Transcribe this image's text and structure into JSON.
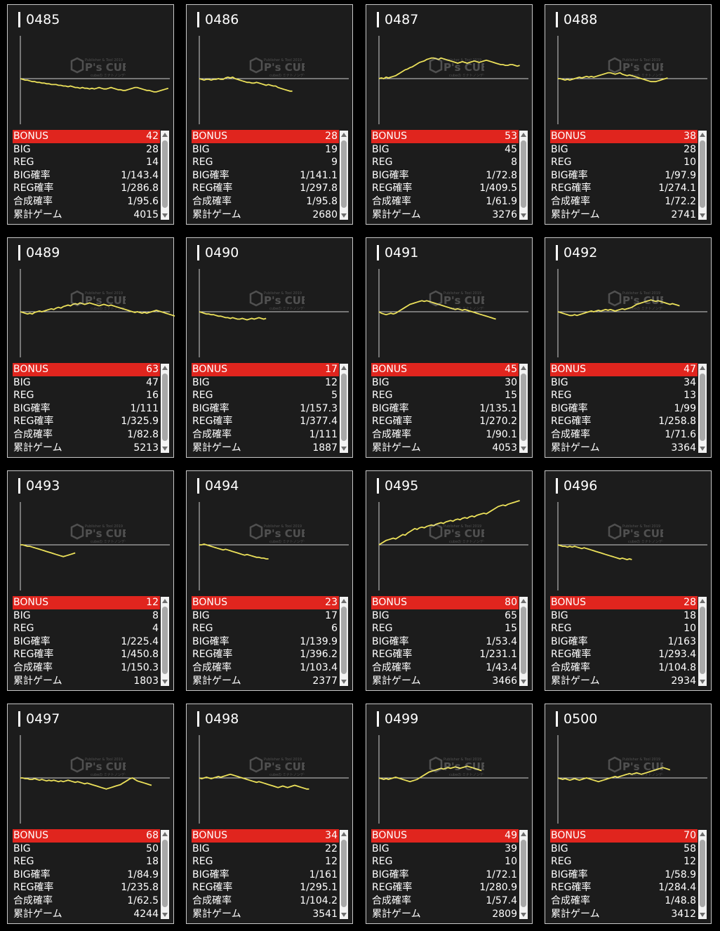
{
  "watermark": {
    "top": "Publisher & Tool 2019",
    "brand": "P's CUBE",
    "bottom": "cubeの ミナトノンデータ"
  },
  "colors": {
    "background": "#000000",
    "card": "#1c1c1c",
    "bonus_bar": "#e0251e",
    "graph_line": "#ece15a",
    "axis": "#d0d0d0"
  },
  "machines": [
    {
      "id": "0485",
      "bonus": "42",
      "big": "28",
      "reg": "14",
      "big_rate": "1/143.4",
      "reg_rate": "1/286.8",
      "total_rate": "1/95.6",
      "games": "4015",
      "trend": [
        0,
        -1,
        -2,
        -2,
        -3,
        -4,
        -4,
        -5,
        -5,
        -6,
        -6,
        -7,
        -7,
        -8,
        -8,
        -8,
        -9,
        -9,
        -10,
        -10,
        -11,
        -10,
        -11,
        -12,
        -12,
        -13,
        -12,
        -13,
        -13,
        -14,
        -13,
        -14,
        -13,
        -12,
        -13,
        -14,
        -14,
        -13,
        -12,
        -13,
        -14,
        -15,
        -15,
        -16,
        -16,
        -15,
        -14,
        -13,
        -12,
        -12,
        -13,
        -14,
        -15,
        -16,
        -16,
        -17,
        -18,
        -18,
        -17,
        -16,
        -15,
        -14,
        -13
      ]
    },
    {
      "id": "0486",
      "bonus": "28",
      "big": "19",
      "reg": "9",
      "big_rate": "1/141.1",
      "reg_rate": "1/297.8",
      "total_rate": "1/95.8",
      "games": "2680",
      "trend": [
        0,
        -1,
        -2,
        -1,
        -1,
        -2,
        -1,
        -1,
        0,
        -1,
        -1,
        1,
        2,
        1,
        2,
        0,
        -1,
        -2,
        -3,
        -4,
        -5,
        -5,
        -6,
        -6,
        -5,
        -6,
        -7,
        -8,
        -9,
        -8,
        -9,
        -10,
        -10,
        -12,
        -13,
        -14,
        -15,
        -16,
        -17,
        -17
      ]
    },
    {
      "id": "0487",
      "bonus": "53",
      "big": "45",
      "reg": "8",
      "big_rate": "1/72.8",
      "reg_rate": "1/409.5",
      "total_rate": "1/61.9",
      "games": "3276",
      "trend": [
        0,
        1,
        0,
        2,
        1,
        2,
        3,
        4,
        6,
        8,
        10,
        12,
        13,
        15,
        16,
        18,
        20,
        22,
        23,
        24,
        26,
        27,
        28,
        28,
        27,
        26,
        28,
        27,
        26,
        25,
        24,
        23,
        22,
        21,
        22,
        23,
        22,
        21,
        22,
        23,
        24,
        23,
        22,
        23,
        24,
        25,
        24,
        23,
        22,
        21,
        20,
        19,
        19,
        18,
        18,
        19,
        19,
        18,
        17,
        18
      ]
    },
    {
      "id": "0488",
      "bonus": "38",
      "big": "28",
      "reg": "10",
      "big_rate": "1/97.9",
      "reg_rate": "1/274.1",
      "total_rate": "1/72.2",
      "games": "2741",
      "trend": [
        0,
        0,
        -1,
        -2,
        -1,
        -2,
        -1,
        0,
        1,
        2,
        1,
        2,
        3,
        2,
        3,
        2,
        3,
        4,
        5,
        6,
        7,
        8,
        8,
        7,
        6,
        7,
        8,
        6,
        5,
        4,
        5,
        4,
        3,
        2,
        1,
        0,
        -1,
        -2,
        -3,
        -4,
        -4,
        -4,
        -3,
        -2,
        -1,
        0,
        1
      ]
    },
    {
      "id": "0489",
      "bonus": "63",
      "big": "47",
      "reg": "16",
      "big_rate": "1/111",
      "reg_rate": "1/325.9",
      "total_rate": "1/82.8",
      "games": "5213",
      "trend": [
        0,
        -1,
        -2,
        -3,
        -2,
        -3,
        -1,
        0,
        1,
        0,
        1,
        2,
        3,
        4,
        3,
        5,
        6,
        5,
        7,
        8,
        9,
        8,
        10,
        11,
        10,
        12,
        11,
        10,
        11,
        12,
        11,
        10,
        9,
        8,
        9,
        10,
        9,
        8,
        9,
        8,
        7,
        6,
        5,
        4,
        3,
        2,
        1,
        0,
        -1,
        0,
        -1,
        -2,
        -1,
        -2,
        -1,
        0,
        1,
        2,
        1,
        0,
        -1,
        -2,
        -3,
        -4,
        -5,
        -6,
        -7,
        -8,
        -9,
        -9,
        -10,
        -10
      ]
    },
    {
      "id": "0490",
      "bonus": "17",
      "big": "12",
      "reg": "5",
      "big_rate": "1/157.3",
      "reg_rate": "1/377.4",
      "total_rate": "1/111",
      "games": "1887",
      "trend": [
        0,
        -1,
        -2,
        -3,
        -3,
        -4,
        -4,
        -5,
        -6,
        -6,
        -7,
        -8,
        -8,
        -9,
        -8,
        -9,
        -10,
        -10,
        -9,
        -10,
        -11,
        -10,
        -9,
        -10,
        -9,
        -8,
        -9,
        -10,
        -9
      ]
    },
    {
      "id": "0491",
      "bonus": "45",
      "big": "30",
      "reg": "15",
      "big_rate": "1/135.1",
      "reg_rate": "1/270.2",
      "total_rate": "1/90.1",
      "games": "4053",
      "trend": [
        0,
        -2,
        -3,
        -4,
        -3,
        -2,
        -3,
        -2,
        0,
        2,
        4,
        6,
        8,
        10,
        11,
        12,
        13,
        14,
        15,
        14,
        15,
        14,
        13,
        12,
        11,
        10,
        9,
        8,
        7,
        6,
        5,
        4,
        3,
        4,
        3,
        2,
        3,
        2,
        1,
        0,
        -1,
        -2,
        -3,
        -4,
        -5,
        -6,
        -7,
        -8,
        -9,
        -10
      ]
    },
    {
      "id": "0492",
      "bonus": "47",
      "big": "34",
      "reg": "13",
      "big_rate": "1/99",
      "reg_rate": "1/258.8",
      "total_rate": "1/71.6",
      "games": "3364",
      "trend": [
        0,
        -1,
        -2,
        -3,
        -4,
        -5,
        -5,
        -4,
        -5,
        -4,
        -3,
        -2,
        -1,
        0,
        1,
        0,
        1,
        2,
        1,
        2,
        3,
        2,
        3,
        2,
        1,
        2,
        3,
        4,
        3,
        4,
        5,
        6,
        8,
        10,
        11,
        12,
        13,
        14,
        15,
        16,
        15,
        14,
        15,
        14,
        13,
        12,
        11,
        10,
        11,
        10,
        9,
        8
      ]
    },
    {
      "id": "0493",
      "bonus": "12",
      "big": "8",
      "reg": "4",
      "big_rate": "1/225.4",
      "reg_rate": "1/450.8",
      "total_rate": "1/150.3",
      "games": "1803",
      "trend": [
        0,
        0,
        -1,
        -2,
        -2,
        -3,
        -4,
        -5,
        -6,
        -7,
        -8,
        -9,
        -10,
        -11,
        -12,
        -13,
        -14,
        -15,
        -16,
        -15,
        -14,
        -13,
        -12,
        -11
      ]
    },
    {
      "id": "0494",
      "bonus": "23",
      "big": "17",
      "reg": "6",
      "big_rate": "1/139.9",
      "reg_rate": "1/396.2",
      "total_rate": "1/103.4",
      "games": "2377",
      "trend": [
        0,
        0,
        1,
        0,
        -1,
        -2,
        -3,
        -4,
        -5,
        -6,
        -7,
        -6,
        -7,
        -8,
        -9,
        -10,
        -11,
        -12,
        -13,
        -14,
        -13,
        -14,
        -15,
        -16,
        -17,
        -17,
        -18,
        -18,
        -19,
        -19
      ]
    },
    {
      "id": "0495",
      "bonus": "80",
      "big": "65",
      "reg": "15",
      "big_rate": "1/53.4",
      "reg_rate": "1/231.1",
      "total_rate": "1/43.4",
      "games": "3466",
      "trend": [
        0,
        2,
        4,
        6,
        7,
        8,
        9,
        8,
        10,
        12,
        14,
        13,
        16,
        18,
        20,
        22,
        21,
        23,
        24,
        23,
        25,
        26,
        27,
        26,
        28,
        29,
        30,
        29,
        31,
        32,
        33,
        32,
        34,
        35,
        34,
        36,
        37,
        36,
        38,
        39,
        38,
        40,
        41,
        42,
        43,
        42,
        44,
        46,
        48,
        50,
        52,
        53,
        54,
        53,
        55,
        56,
        57,
        58,
        59,
        60
      ]
    },
    {
      "id": "0496",
      "bonus": "28",
      "big": "18",
      "reg": "10",
      "big_rate": "1/163",
      "reg_rate": "1/293.4",
      "total_rate": "1/104.8",
      "games": "2934",
      "trend": [
        0,
        -1,
        -2,
        -2,
        -3,
        -2,
        -3,
        -2,
        -3,
        -4,
        -5,
        -4,
        -5,
        -6,
        -7,
        -8,
        -9,
        -10,
        -11,
        -12,
        -13,
        -14,
        -15,
        -16,
        -17,
        -18,
        -19,
        -18,
        -19,
        -20,
        -19,
        -20
      ]
    },
    {
      "id": "0497",
      "bonus": "68",
      "big": "50",
      "reg": "18",
      "big_rate": "1/84.9",
      "reg_rate": "1/235.8",
      "total_rate": "1/62.5",
      "games": "4244",
      "trend": [
        0,
        0,
        -1,
        -1,
        -2,
        -2,
        -1,
        -2,
        -3,
        -2,
        -3,
        -4,
        -3,
        -4,
        -3,
        -4,
        -5,
        -4,
        -5,
        -4,
        -3,
        -4,
        -5,
        -6,
        -5,
        -6,
        -7,
        -8,
        -7,
        -8,
        -9,
        -10,
        -11,
        -12,
        -13,
        -14,
        -15,
        -14,
        -13,
        -12,
        -11,
        -10,
        -9,
        -7,
        -5,
        -3,
        -1,
        0,
        -2,
        -4,
        -5,
        -6,
        -7,
        -8,
        -9,
        -10
      ]
    },
    {
      "id": "0498",
      "bonus": "34",
      "big": "22",
      "reg": "12",
      "big_rate": "1/161",
      "reg_rate": "1/295.1",
      "total_rate": "1/104.2",
      "games": "3541",
      "trend": [
        0,
        -1,
        0,
        1,
        0,
        -1,
        0,
        1,
        2,
        1,
        2,
        3,
        4,
        5,
        4,
        3,
        2,
        1,
        0,
        -1,
        -2,
        -3,
        -4,
        -5,
        -6,
        -5,
        -6,
        -7,
        -8,
        -9,
        -10,
        -11,
        -12,
        -13,
        -12,
        -11,
        -12,
        -13,
        -12,
        -11,
        -10,
        -11,
        -12,
        -13,
        -14,
        -15,
        -15
      ]
    },
    {
      "id": "0499",
      "bonus": "49",
      "big": "39",
      "reg": "10",
      "big_rate": "1/72.1",
      "reg_rate": "1/280.9",
      "total_rate": "1/57.4",
      "games": "2809",
      "trend": [
        0,
        -1,
        -2,
        -1,
        -2,
        -1,
        0,
        1,
        0,
        -1,
        -2,
        -3,
        -4,
        -5,
        -4,
        -3,
        -2,
        0,
        2,
        4,
        6,
        8,
        9,
        10,
        11,
        12,
        13,
        12,
        13,
        14,
        13,
        14,
        15,
        14,
        13,
        14,
        15,
        16,
        15,
        14,
        13,
        12,
        11,
        10
      ]
    },
    {
      "id": "0500",
      "bonus": "70",
      "big": "58",
      "reg": "12",
      "big_rate": "1/58.9",
      "reg_rate": "1/284.4",
      "total_rate": "1/48.8",
      "games": "3412",
      "trend": [
        0,
        -1,
        -2,
        -1,
        -2,
        -3,
        -2,
        -1,
        -2,
        -3,
        -2,
        -1,
        0,
        -1,
        -2,
        -3,
        -4,
        -5,
        -4,
        -3,
        -2,
        -1,
        0,
        1,
        2,
        1,
        2,
        3,
        4,
        5,
        6,
        5,
        6,
        7,
        6,
        5,
        6,
        7,
        8,
        9,
        10,
        11,
        12,
        13,
        14,
        13,
        12,
        11
      ]
    }
  ],
  "labels": {
    "bonus": "BONUS",
    "big": "BIG",
    "reg": "REG",
    "big_rate": "BIG確率",
    "reg_rate": "REG確率",
    "total_rate": "合成確率",
    "games": "累計ゲーム"
  }
}
